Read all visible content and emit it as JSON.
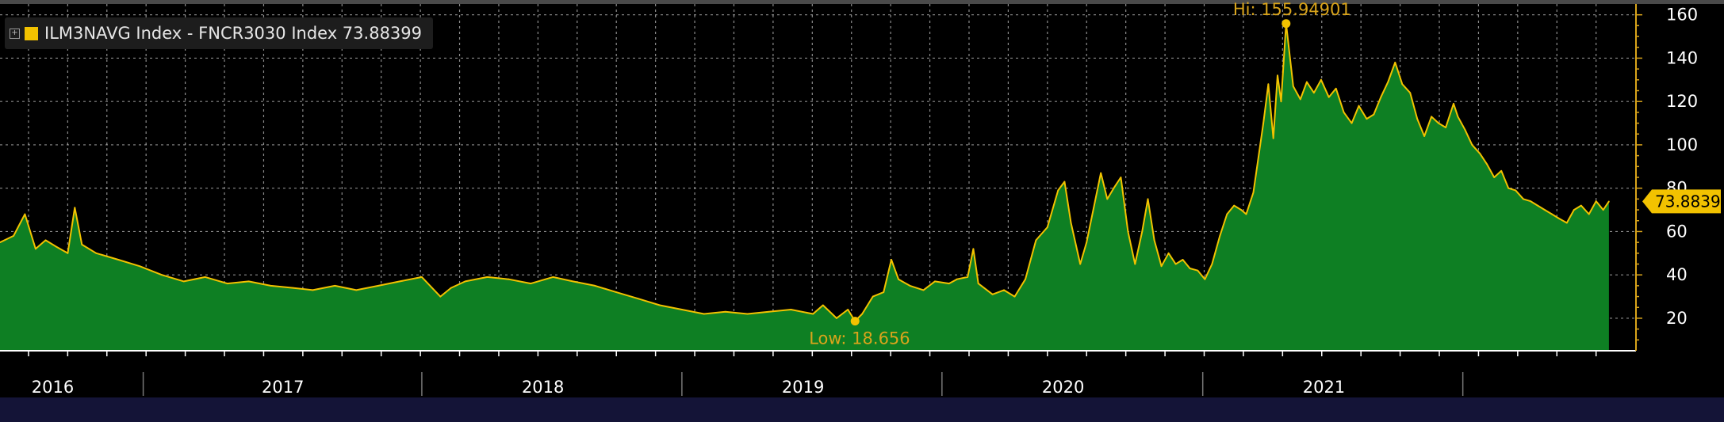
{
  "legend": {
    "expander_icon": "plus-box-icon",
    "text": "ILM3NAVG Index - FNCR3030 Index 73.88399",
    "swatch_color": "#f2c200"
  },
  "colors": {
    "line": "#f2c200",
    "area": "#0e7f23",
    "grid": "#b0b0b0",
    "background": "#000000",
    "footer": "#141437",
    "last_tag": "#f2c200"
  },
  "chart_data": {
    "type": "area",
    "title": "",
    "xlabel": "",
    "ylabel": "",
    "series": [
      {
        "name": "ILM3NAVG Index - FNCR3030 Index",
        "points": [
          [
            "2016-01-01",
            55
          ],
          [
            "2016-01-20",
            58
          ],
          [
            "2016-02-05",
            68
          ],
          [
            "2016-02-20",
            52
          ],
          [
            "2016-03-05",
            56
          ],
          [
            "2016-03-20",
            53
          ],
          [
            "2016-04-05",
            50
          ],
          [
            "2016-04-15",
            71
          ],
          [
            "2016-04-25",
            54
          ],
          [
            "2016-05-15",
            50
          ],
          [
            "2016-06-15",
            47
          ],
          [
            "2016-07-15",
            44
          ],
          [
            "2016-08-15",
            40
          ],
          [
            "2016-09-15",
            37
          ],
          [
            "2016-10-15",
            39
          ],
          [
            "2016-11-15",
            36
          ],
          [
            "2016-12-15",
            37
          ],
          [
            "2017-01-15",
            35
          ],
          [
            "2017-02-15",
            34
          ],
          [
            "2017-03-15",
            33
          ],
          [
            "2017-04-15",
            35
          ],
          [
            "2017-05-15",
            33
          ],
          [
            "2017-06-15",
            35
          ],
          [
            "2017-07-15",
            37
          ],
          [
            "2017-08-15",
            39
          ],
          [
            "2017-09-10",
            30
          ],
          [
            "2017-09-25",
            34
          ],
          [
            "2017-10-15",
            37
          ],
          [
            "2017-11-15",
            39
          ],
          [
            "2017-12-15",
            38
          ],
          [
            "2018-01-15",
            36
          ],
          [
            "2018-02-15",
            39
          ],
          [
            "2018-03-15",
            37
          ],
          [
            "2018-04-15",
            35
          ],
          [
            "2018-05-15",
            32
          ],
          [
            "2018-06-15",
            29
          ],
          [
            "2018-07-15",
            26
          ],
          [
            "2018-08-15",
            24
          ],
          [
            "2018-09-15",
            22
          ],
          [
            "2018-10-15",
            23
          ],
          [
            "2018-11-15",
            22
          ],
          [
            "2018-12-15",
            23
          ],
          [
            "2019-01-15",
            24
          ],
          [
            "2019-02-15",
            22
          ],
          [
            "2019-03-01",
            26
          ],
          [
            "2019-03-20",
            20
          ],
          [
            "2019-04-05",
            24
          ],
          [
            "2019-04-15",
            18.656
          ],
          [
            "2019-04-25",
            22
          ],
          [
            "2019-05-10",
            30
          ],
          [
            "2019-05-25",
            32
          ],
          [
            "2019-06-05",
            47
          ],
          [
            "2019-06-15",
            38
          ],
          [
            "2019-07-01",
            35
          ],
          [
            "2019-07-20",
            33
          ],
          [
            "2019-08-05",
            37
          ],
          [
            "2019-08-25",
            36
          ],
          [
            "2019-09-05",
            38
          ],
          [
            "2019-09-20",
            39
          ],
          [
            "2019-09-28",
            52
          ],
          [
            "2019-10-05",
            36
          ],
          [
            "2019-10-25",
            31
          ],
          [
            "2019-11-10",
            33
          ],
          [
            "2019-11-25",
            30
          ],
          [
            "2019-12-10",
            38
          ],
          [
            "2019-12-25",
            56
          ],
          [
            "2020-01-10",
            62
          ],
          [
            "2020-01-25",
            79
          ],
          [
            "2020-02-03",
            83
          ],
          [
            "2020-02-12",
            64
          ],
          [
            "2020-02-25",
            45
          ],
          [
            "2020-03-05",
            55
          ],
          [
            "2020-03-15",
            71
          ],
          [
            "2020-03-25",
            87
          ],
          [
            "2020-04-03",
            75
          ],
          [
            "2020-04-12",
            80
          ],
          [
            "2020-04-22",
            85
          ],
          [
            "2020-05-02",
            60
          ],
          [
            "2020-05-12",
            45
          ],
          [
            "2020-05-22",
            60
          ],
          [
            "2020-05-30",
            75
          ],
          [
            "2020-06-08",
            56
          ],
          [
            "2020-06-18",
            44
          ],
          [
            "2020-06-28",
            50
          ],
          [
            "2020-07-08",
            45
          ],
          [
            "2020-07-18",
            47
          ],
          [
            "2020-07-28",
            43
          ],
          [
            "2020-08-08",
            42
          ],
          [
            "2020-08-18",
            38
          ],
          [
            "2020-08-28",
            45
          ],
          [
            "2020-09-08",
            58
          ],
          [
            "2020-09-18",
            68
          ],
          [
            "2020-09-28",
            72
          ],
          [
            "2020-10-08",
            70
          ],
          [
            "2020-10-15",
            68
          ],
          [
            "2020-10-25",
            78
          ],
          [
            "2020-11-08",
            110
          ],
          [
            "2020-11-15",
            128
          ],
          [
            "2020-11-22",
            103
          ],
          [
            "2020-11-28",
            132
          ],
          [
            "2020-12-03",
            120
          ],
          [
            "2020-12-10",
            155.94901
          ],
          [
            "2020-12-20",
            127
          ],
          [
            "2020-12-30",
            121
          ],
          [
            "2021-01-08",
            129
          ],
          [
            "2021-01-18",
            124
          ],
          [
            "2021-01-28",
            130
          ],
          [
            "2021-02-08",
            122
          ],
          [
            "2021-02-18",
            126
          ],
          [
            "2021-03-01",
            115
          ],
          [
            "2021-03-12",
            110
          ],
          [
            "2021-03-22",
            118
          ],
          [
            "2021-04-02",
            112
          ],
          [
            "2021-04-12",
            114
          ],
          [
            "2021-04-22",
            122
          ],
          [
            "2021-05-02",
            129
          ],
          [
            "2021-05-12",
            138
          ],
          [
            "2021-05-22",
            128
          ],
          [
            "2021-06-02",
            124
          ],
          [
            "2021-06-12",
            112
          ],
          [
            "2021-06-22",
            104
          ],
          [
            "2021-07-02",
            113
          ],
          [
            "2021-07-12",
            110
          ],
          [
            "2021-07-22",
            108
          ],
          [
            "2021-08-02",
            119
          ],
          [
            "2021-08-08",
            113
          ],
          [
            "2021-08-18",
            107
          ],
          [
            "2021-08-28",
            100
          ],
          [
            "2021-09-08",
            96
          ],
          [
            "2021-09-18",
            91
          ],
          [
            "2021-09-28",
            85
          ],
          [
            "2021-10-08",
            88
          ],
          [
            "2021-10-18",
            80
          ],
          [
            "2021-10-28",
            79
          ],
          [
            "2021-11-08",
            75
          ],
          [
            "2021-11-18",
            74
          ],
          [
            "2021-11-28",
            72
          ],
          [
            "2021-12-08",
            70
          ],
          [
            "2021-12-18",
            68
          ],
          [
            "2021-12-28",
            66
          ],
          [
            "2022-01-08",
            64
          ],
          [
            "2022-01-18",
            70
          ],
          [
            "2022-01-28",
            72
          ],
          [
            "2022-02-08",
            68
          ],
          [
            "2022-02-18",
            74
          ],
          [
            "2022-02-28",
            70
          ],
          [
            "2022-03-08",
            73.88399
          ]
        ]
      }
    ],
    "x_axis": {
      "range": [
        "2016-01-01",
        "2022-04-15"
      ],
      "tick_labels": [
        {
          "label": "2016",
          "center": "2016-03-15"
        },
        {
          "label": "2017",
          "center": "2017-02-01"
        },
        {
          "label": "2018",
          "center": "2018-02-01"
        },
        {
          "label": "2019",
          "center": "2019-02-01"
        },
        {
          "label": "2020",
          "center": "2020-02-01"
        },
        {
          "label": "2021",
          "center": "2021-02-01"
        }
      ],
      "dividers": [
        "2016-07-20",
        "2017-08-15",
        "2018-08-15",
        "2019-08-15",
        "2020-08-15",
        "2021-08-15"
      ]
    },
    "y_axis": {
      "position": "right",
      "range": [
        5,
        165
      ],
      "ticks": [
        20,
        40,
        60,
        80,
        100,
        120,
        140,
        160
      ]
    },
    "grid": true,
    "legend_position": "top-left",
    "annotations": {
      "high": {
        "text": "Hi: 155.94901",
        "x": "2020-12-10",
        "y": 155.94901
      },
      "low": {
        "text": "Low: 18.656",
        "x": "2019-04-15",
        "y": 18.656
      },
      "last_value": {
        "text": "73.88399",
        "y": 73.88399
      }
    }
  }
}
